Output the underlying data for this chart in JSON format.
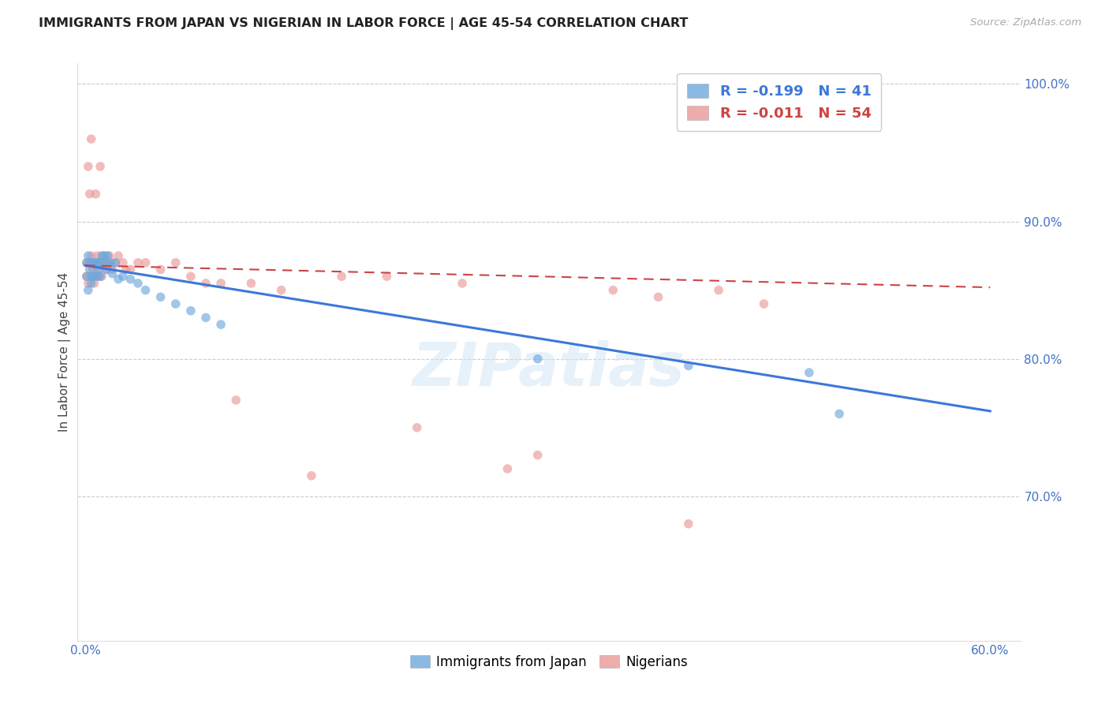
{
  "title": "IMMIGRANTS FROM JAPAN VS NIGERIAN IN LABOR FORCE | AGE 45-54 CORRELATION CHART",
  "source": "Source: ZipAtlas.com",
  "ylabel": "In Labor Force | Age 45-54",
  "xlim": [
    -0.005,
    0.62
  ],
  "ylim": [
    0.595,
    1.015
  ],
  "xticks": [
    0.0,
    0.6
  ],
  "xtick_labels": [
    "0.0%",
    "60.0%"
  ],
  "yticks": [
    0.7,
    0.8,
    0.9,
    1.0
  ],
  "ytick_labels": [
    "70.0%",
    "80.0%",
    "90.0%",
    "100.0%"
  ],
  "blue_color": "#6fa8dc",
  "pink_color": "#ea9999",
  "legend_blue_r": "R = -0.199",
  "legend_blue_n": "N = 41",
  "legend_pink_r": "R = -0.011",
  "legend_pink_n": "N = 54",
  "watermark": "ZIPatlas",
  "japan_x": [
    0.001,
    0.001,
    0.002,
    0.002,
    0.003,
    0.003,
    0.004,
    0.004,
    0.005,
    0.005,
    0.006,
    0.006,
    0.007,
    0.008,
    0.008,
    0.009,
    0.01,
    0.01,
    0.011,
    0.012,
    0.013,
    0.014,
    0.015,
    0.016,
    0.017,
    0.018,
    0.02,
    0.022,
    0.025,
    0.03,
    0.035,
    0.04,
    0.05,
    0.06,
    0.07,
    0.08,
    0.09,
    0.3,
    0.4,
    0.48,
    0.5
  ],
  "japan_y": [
    0.86,
    0.87,
    0.85,
    0.875,
    0.865,
    0.87,
    0.855,
    0.86,
    0.87,
    0.86,
    0.87,
    0.86,
    0.87,
    0.86,
    0.87,
    0.865,
    0.87,
    0.86,
    0.875,
    0.87,
    0.875,
    0.865,
    0.875,
    0.87,
    0.868,
    0.862,
    0.87,
    0.858,
    0.86,
    0.858,
    0.855,
    0.85,
    0.845,
    0.84,
    0.835,
    0.83,
    0.825,
    0.8,
    0.795,
    0.79,
    0.76
  ],
  "nigeria_x": [
    0.001,
    0.001,
    0.002,
    0.002,
    0.003,
    0.003,
    0.004,
    0.004,
    0.005,
    0.005,
    0.006,
    0.007,
    0.007,
    0.008,
    0.008,
    0.009,
    0.01,
    0.01,
    0.011,
    0.012,
    0.013,
    0.013,
    0.014,
    0.015,
    0.016,
    0.017,
    0.018,
    0.02,
    0.022,
    0.025,
    0.027,
    0.03,
    0.035,
    0.04,
    0.05,
    0.06,
    0.07,
    0.08,
    0.09,
    0.1,
    0.11,
    0.13,
    0.15,
    0.17,
    0.2,
    0.22,
    0.25,
    0.28,
    0.3,
    0.35,
    0.38,
    0.4,
    0.42,
    0.45
  ],
  "nigeria_y": [
    0.86,
    0.87,
    0.94,
    0.855,
    0.87,
    0.92,
    0.875,
    0.96,
    0.865,
    0.87,
    0.855,
    0.87,
    0.92,
    0.865,
    0.875,
    0.86,
    0.87,
    0.94,
    0.86,
    0.875,
    0.87,
    0.87,
    0.865,
    0.87,
    0.875,
    0.87,
    0.865,
    0.87,
    0.875,
    0.87,
    0.865,
    0.865,
    0.87,
    0.87,
    0.865,
    0.87,
    0.86,
    0.855,
    0.855,
    0.77,
    0.855,
    0.85,
    0.715,
    0.86,
    0.86,
    0.75,
    0.855,
    0.72,
    0.73,
    0.85,
    0.845,
    0.68,
    0.85,
    0.84
  ],
  "blue_trendline_x": [
    0.0,
    0.6
  ],
  "blue_trendline_y": [
    0.868,
    0.762
  ],
  "pink_trendline_x": [
    0.0,
    0.6
  ],
  "pink_trendline_y": [
    0.868,
    0.852
  ],
  "background_color": "#ffffff",
  "title_color": "#222222",
  "axis_color": "#4472c4",
  "grid_color": "#cccccc",
  "marker_size": 70
}
